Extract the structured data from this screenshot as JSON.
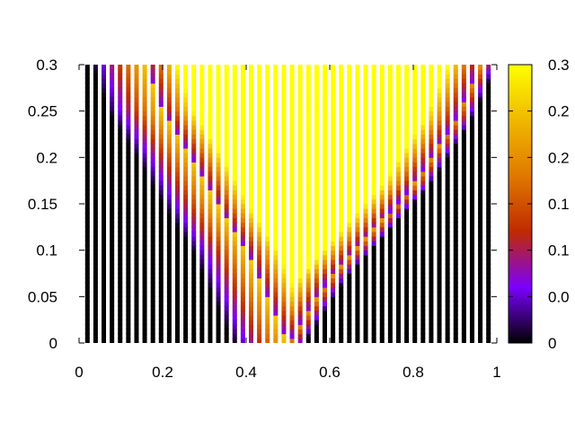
{
  "chart_data": {
    "type": "heatmap",
    "title": "",
    "xlabel": "",
    "ylabel": "",
    "xlim": [
      0,
      1
    ],
    "ylim": [
      0,
      0.3
    ],
    "x_ticks": [
      {
        "value": 0,
        "label": "0"
      },
      {
        "value": 0.2,
        "label": "0.2"
      },
      {
        "value": 0.4,
        "label": "0.4"
      },
      {
        "value": 0.6,
        "label": "0.6"
      },
      {
        "value": 0.8,
        "label": "0.8"
      },
      {
        "value": 1,
        "label": "1"
      }
    ],
    "y_ticks": [
      {
        "value": 0,
        "label": "0"
      },
      {
        "value": 0.05,
        "label": "0.05"
      },
      {
        "value": 0.1,
        "label": "0.1"
      },
      {
        "value": 0.15,
        "label": "0.15"
      },
      {
        "value": 0.2,
        "label": "0.2"
      },
      {
        "value": 0.25,
        "label": "0.25"
      },
      {
        "value": 0.3,
        "label": "0.3"
      }
    ],
    "colorbar": {
      "range": [
        0,
        0.3
      ],
      "palette": [
        "#000000",
        "#7b00ff",
        "#c02a00",
        "#e07800",
        "#f0b800",
        "#ffff00"
      ],
      "tick_labels": [
        "0",
        "0.0",
        "0.1",
        "0.1",
        "0.2",
        "0.2",
        "0.3"
      ]
    },
    "stripes": {
      "x_start": 0.02,
      "x_end": 0.98,
      "count": 50
    },
    "regions": {
      "apex_x": 0.5,
      "left_boundary": [
        [
          0.5,
          0
        ],
        [
          0.45,
          0.05
        ],
        [
          0.4,
          0.1
        ],
        [
          0.33,
          0.15
        ],
        [
          0.27,
          0.2
        ],
        [
          0.2,
          0.25
        ],
        [
          0.16,
          0.3
        ]
      ],
      "right_boundary": [
        [
          0.5,
          0
        ],
        [
          0.6,
          0.07
        ],
        [
          0.7,
          0.12
        ],
        [
          0.8,
          0.17
        ],
        [
          0.9,
          0.24
        ],
        [
          0.96,
          0.3
        ]
      ],
      "colored_band_width": 0.13
    },
    "grid": false,
    "legend": "colorbar-right"
  }
}
